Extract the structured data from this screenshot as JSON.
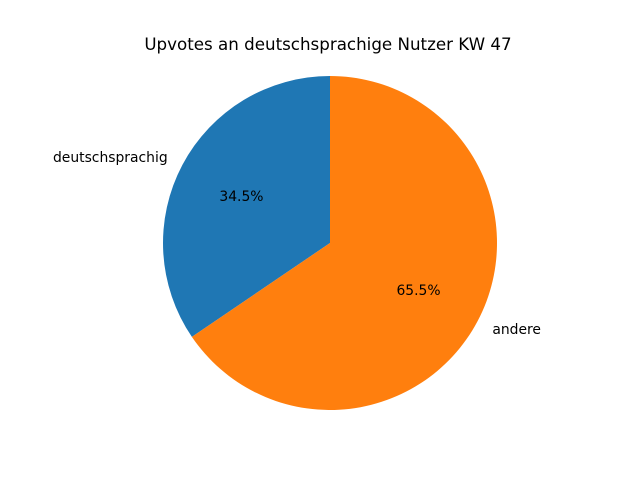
{
  "chart_data": {
    "type": "pie",
    "title": "Upvotes an deutschsprachige Nutzer KW 47",
    "labels": [
      "deutschsprachig",
      "andere"
    ],
    "values": [
      34.5,
      65.5
    ],
    "pct_labels": [
      "34.5%",
      "65.5%"
    ],
    "colors": [
      "#1f77b4",
      "#ff7f0e"
    ],
    "startangle": 90,
    "counterclock": true,
    "pctdistance": 0.6,
    "labeldistance": 1.1,
    "legend": "none",
    "background": "#ffffff",
    "text_color": "#000000"
  }
}
